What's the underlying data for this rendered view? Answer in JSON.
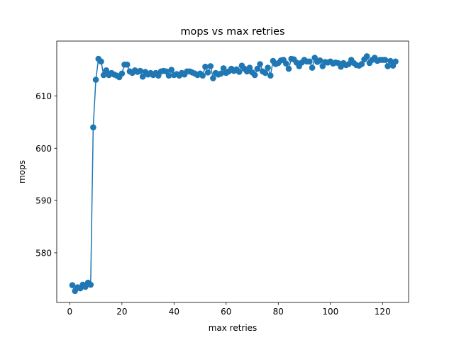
{
  "chart_data": {
    "type": "line",
    "title": "mops vs max retries",
    "xlabel": "max retries",
    "ylabel": "mops",
    "xlim": [
      -5,
      130
    ],
    "ylim": [
      570.5,
      620.5
    ],
    "xticks": [
      0,
      20,
      40,
      60,
      80,
      100,
      120
    ],
    "yticks": [
      580,
      590,
      600,
      610
    ],
    "grid": false,
    "line_color": "#1f77b4",
    "marker": "circle",
    "series": [
      {
        "x": [
          1,
          2,
          3,
          4,
          5,
          6,
          7,
          8,
          9,
          10,
          11,
          12,
          13,
          14,
          15,
          16,
          17,
          18,
          19,
          20,
          21,
          22,
          23,
          24,
          25,
          26,
          27,
          28,
          29,
          30,
          31,
          32,
          33,
          34,
          35,
          36,
          37,
          38,
          39,
          40,
          41,
          42,
          43,
          44,
          45,
          46,
          47,
          48,
          49,
          50,
          51,
          52,
          53,
          54,
          55,
          56,
          57,
          58,
          59,
          60,
          61,
          62,
          63,
          64,
          65,
          66,
          67,
          68,
          69,
          70,
          71,
          72,
          73,
          74,
          75,
          76,
          77,
          78,
          79,
          80,
          81,
          82,
          83,
          84,
          85,
          86,
          87,
          88,
          89,
          90,
          91,
          92,
          93,
          94,
          95,
          96,
          97,
          98,
          99,
          100,
          101,
          102,
          103,
          104,
          105,
          106,
          107,
          108,
          109,
          110,
          111,
          112,
          113,
          114,
          115,
          116,
          117,
          118,
          119,
          120,
          121,
          122,
          123,
          124,
          125
        ],
        "y": [
          573.8,
          572.7,
          573.4,
          573.2,
          573.9,
          573.5,
          574.3,
          573.9,
          604,
          613.1,
          617.1,
          616.6,
          614,
          614.9,
          614,
          614.4,
          614.1,
          613.9,
          613.6,
          614.3,
          616,
          616,
          614.7,
          614.4,
          614.9,
          614.6,
          614.8,
          613.7,
          614.6,
          614.1,
          614.4,
          614,
          614.4,
          613.9,
          614.7,
          614.8,
          614.7,
          613.9,
          615,
          614,
          614.2,
          613.9,
          614.4,
          614.1,
          614.7,
          614.7,
          614.5,
          614.3,
          614,
          614.3,
          613.9,
          615.6,
          614.5,
          615.7,
          613.4,
          614.4,
          614.1,
          614.3,
          615.3,
          614.4,
          614.7,
          615.2,
          614.8,
          615.1,
          614.6,
          615.8,
          615.2,
          614.7,
          615.4,
          614.5,
          614,
          615.2,
          616.1,
          614.7,
          614.4,
          615.4,
          613.9,
          616.7,
          616.1,
          616.3,
          616.8,
          616.9,
          616.2,
          615.2,
          617.1,
          617,
          616.4,
          615.7,
          616.4,
          616.9,
          616.6,
          616.6,
          615.4,
          617.3,
          616.5,
          616.8,
          615.7,
          616.5,
          616.4,
          616.6,
          616.2,
          616.4,
          616.3,
          615.6,
          616.3,
          615.9,
          616.1,
          616.9,
          616.3,
          615.9,
          615.8,
          616.1,
          617,
          617.6,
          616.3,
          616.9,
          617.3,
          616.7,
          616.9,
          616.9,
          616.9,
          615.7,
          616.7,
          615.8,
          616.6
        ]
      }
    ]
  }
}
